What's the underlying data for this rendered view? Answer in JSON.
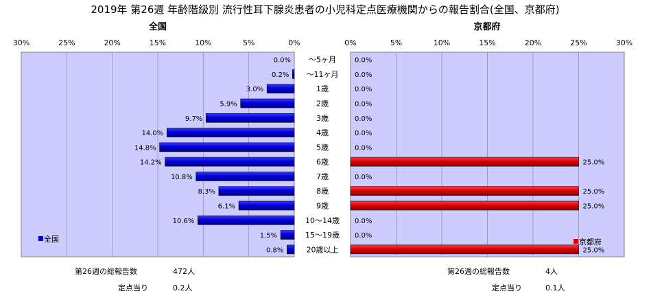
{
  "chart_data": {
    "type": "bar",
    "title": "2019年 第26週 年齢階級別 流行性耳下腺炎患者の小児科定点医療機関からの報告割合(全国、京都府)",
    "categories": [
      "～5ヶ月",
      "～11ヶ月",
      "1歳",
      "2歳",
      "3歳",
      "4歳",
      "5歳",
      "6歳",
      "7歳",
      "8歳",
      "9歳",
      "10～14歳",
      "15～19歳",
      "20歳以上"
    ],
    "panels": [
      {
        "subtitle": "全国",
        "direction": "left",
        "xlim": [
          0,
          30
        ],
        "xticks": [
          "30%",
          "25%",
          "20%",
          "15%",
          "10%",
          "5%",
          "0%"
        ],
        "series": [
          {
            "name": "全国",
            "color": "#0000cc",
            "values": [
              0.0,
              0.2,
              3.0,
              5.9,
              9.7,
              14.0,
              14.8,
              14.2,
              10.8,
              8.3,
              6.1,
              10.6,
              1.5,
              0.8
            ],
            "labels": [
              "0.0%",
              "0.2%",
              "3.0%",
              "5.9%",
              "9.7%",
              "14.0%",
              "14.8%",
              "14.2%",
              "10.8%",
              "8.3%",
              "6.1%",
              "10.6%",
              "1.5%",
              "0.8%"
            ]
          }
        ],
        "legend": "bottom-left",
        "stats": [
          {
            "label": "第26週の総報告数",
            "value": "472人"
          },
          {
            "label": "定点当り",
            "value": "0.2人"
          }
        ]
      },
      {
        "subtitle": "京都府",
        "direction": "right",
        "xlim": [
          0,
          30
        ],
        "xticks": [
          "0%",
          "5%",
          "10%",
          "15%",
          "20%",
          "25%",
          "30%"
        ],
        "series": [
          {
            "name": "京都府",
            "color": "#dd0000",
            "values": [
              0,
              0,
              0,
              0,
              0,
              0,
              0,
              25.0,
              0,
              25.0,
              25.0,
              0,
              0,
              25.0
            ],
            "labels": [
              "0.0%",
              "0.0%",
              "0.0%",
              "0.0%",
              "0.0%",
              "0.0%",
              "0.0%",
              "25.0%",
              "0.0%",
              "25.0%",
              "25.0%",
              "0.0%",
              "0.0%",
              "25.0%"
            ]
          }
        ],
        "legend": "bottom-right",
        "stats": [
          {
            "label": "第26週の総報告数",
            "value": "4人"
          },
          {
            "label": "定点当り",
            "value": "0.1人"
          }
        ]
      }
    ],
    "grid": true,
    "plot_background": "#ccccff"
  }
}
